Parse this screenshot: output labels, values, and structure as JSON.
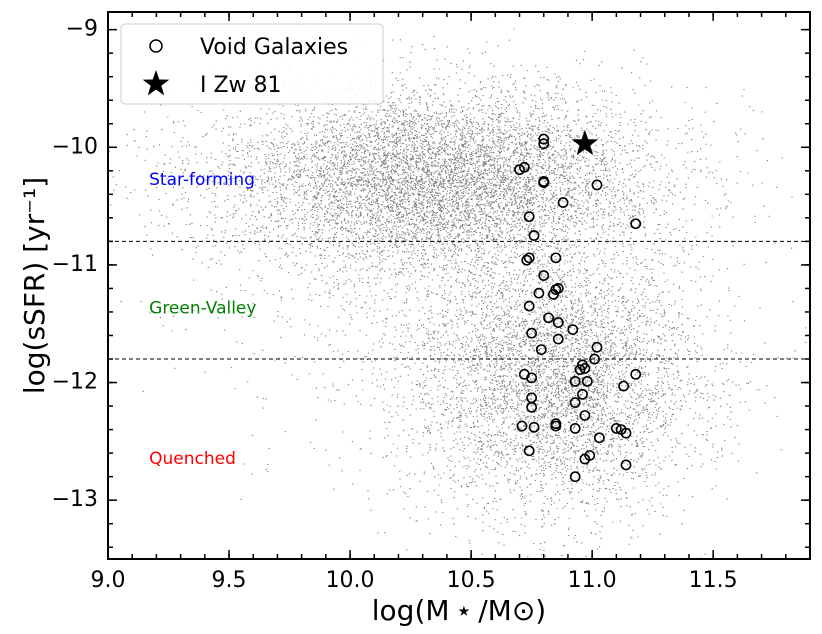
{
  "chart_data": {
    "type": "scatter",
    "xlabel": "log(M ⋆ /M⊙)",
    "ylabel": "log(sSFR) [yr⁻¹]",
    "xlim": [
      9.0,
      11.9
    ],
    "ylim": [
      -13.5,
      -8.85
    ],
    "x_ticks": [
      9.0,
      9.5,
      10.0,
      10.5,
      11.0,
      11.5
    ],
    "x_tick_labels": [
      "9.0",
      "9.5",
      "10.0",
      "10.5",
      "11.0",
      "11.5"
    ],
    "y_ticks": [
      -9,
      -10,
      -11,
      -12,
      -13
    ],
    "y_tick_labels": [
      "−9",
      "−10",
      "−11",
      "−12",
      "−13"
    ],
    "thresholds": [
      -10.8,
      -11.8
    ],
    "regions": [
      {
        "label": "Star-forming",
        "x": 9.17,
        "y": -10.28,
        "color": "#0000ff"
      },
      {
        "label": "Green-Valley",
        "x": 9.17,
        "y": -11.37,
        "color": "#008000"
      },
      {
        "label": "Quenched",
        "x": 9.17,
        "y": -12.65,
        "color": "#ff0000"
      }
    ],
    "legend": {
      "position": "top-left",
      "entries": [
        {
          "label": "Void Galaxies",
          "marker": "open-circle"
        },
        {
          "label": "I Zw 81",
          "marker": "star"
        }
      ]
    },
    "colors": {
      "background_points": "#808080",
      "void_galaxies": "#000000",
      "star": "#000000"
    },
    "background_population": {
      "description_note": "dense gray field of ~150k points, approximated",
      "components": [
        {
          "mean_x": 10.35,
          "mean_y": -10.25,
          "sd_x": 0.45,
          "sd_y": 0.38,
          "weight": 0.55
        },
        {
          "mean_x": 10.85,
          "mean_y": -12.0,
          "sd_x": 0.3,
          "sd_y": 0.55,
          "weight": 0.35
        },
        {
          "mean_x": 10.5,
          "mean_y": -11.2,
          "sd_x": 0.5,
          "sd_y": 0.7,
          "weight": 0.1
        }
      ]
    },
    "series": [
      {
        "name": "Void Galaxies",
        "points": [
          [
            10.8,
            -9.93
          ],
          [
            10.8,
            -9.97
          ],
          [
            10.7,
            -10.19
          ],
          [
            10.72,
            -10.17
          ],
          [
            10.8,
            -10.3
          ],
          [
            10.8,
            -10.29
          ],
          [
            11.02,
            -10.32
          ],
          [
            10.88,
            -10.47
          ],
          [
            10.74,
            -10.59
          ],
          [
            11.18,
            -10.65
          ],
          [
            10.76,
            -10.75
          ],
          [
            10.74,
            -10.94
          ],
          [
            10.73,
            -10.96
          ],
          [
            10.85,
            -10.94
          ],
          [
            10.8,
            -11.09
          ],
          [
            10.85,
            -11.21
          ],
          [
            10.86,
            -11.2
          ],
          [
            10.84,
            -11.25
          ],
          [
            10.78,
            -11.24
          ],
          [
            10.74,
            -11.35
          ],
          [
            10.82,
            -11.45
          ],
          [
            10.86,
            -11.49
          ],
          [
            10.92,
            -11.55
          ],
          [
            10.75,
            -11.58
          ],
          [
            10.86,
            -11.63
          ],
          [
            10.79,
            -11.72
          ],
          [
            11.02,
            -11.7
          ],
          [
            11.01,
            -11.8
          ],
          [
            10.96,
            -11.85
          ],
          [
            10.97,
            -11.88
          ],
          [
            10.95,
            -11.89
          ],
          [
            10.72,
            -11.93
          ],
          [
            10.75,
            -11.96
          ],
          [
            10.93,
            -11.99
          ],
          [
            10.98,
            -11.99
          ],
          [
            11.18,
            -11.93
          ],
          [
            11.13,
            -12.03
          ],
          [
            10.96,
            -12.1
          ],
          [
            10.75,
            -12.13
          ],
          [
            10.75,
            -12.21
          ],
          [
            10.93,
            -12.17
          ],
          [
            10.97,
            -12.28
          ],
          [
            10.85,
            -12.35
          ],
          [
            10.85,
            -12.37
          ],
          [
            10.71,
            -12.37
          ],
          [
            10.76,
            -12.38
          ],
          [
            10.93,
            -12.39
          ],
          [
            11.1,
            -12.39
          ],
          [
            11.12,
            -12.4
          ],
          [
            11.14,
            -12.43
          ],
          [
            11.03,
            -12.47
          ],
          [
            10.99,
            -12.62
          ],
          [
            10.97,
            -12.65
          ],
          [
            10.74,
            -12.58
          ],
          [
            11.14,
            -12.7
          ],
          [
            10.93,
            -12.8
          ]
        ]
      },
      {
        "name": "I Zw 81",
        "points": [
          [
            10.97,
            -9.97
          ]
        ]
      }
    ]
  }
}
